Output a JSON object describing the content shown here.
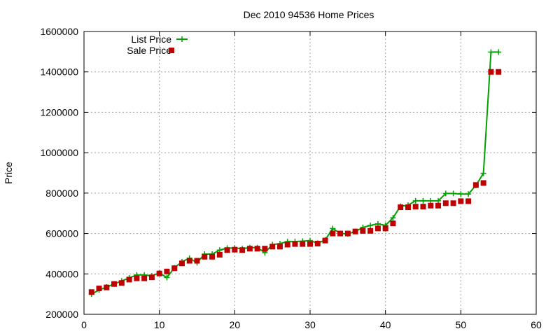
{
  "chart_data": {
    "type": "line",
    "title": "Dec 2010 94536 Home Prices",
    "xlabel": "",
    "ylabel": "Price",
    "xlim": [
      0,
      60
    ],
    "ylim": [
      200000,
      1600000
    ],
    "xticks": [
      0,
      10,
      20,
      30,
      40,
      50,
      60
    ],
    "yticks": [
      200000,
      400000,
      600000,
      800000,
      1000000,
      1200000,
      1400000,
      1600000
    ],
    "xtick_labels": [
      "0",
      "10",
      "20",
      "30",
      "40",
      "50",
      "60"
    ],
    "ytick_labels": [
      "200000",
      "400000",
      "600000",
      "800000",
      "1000000",
      "1200000",
      "1400000",
      "1600000"
    ],
    "grid": true,
    "legend_position": "top-left",
    "series": [
      {
        "name": "List Price",
        "style": "linespoints",
        "color": "#00a000",
        "x": [
          1,
          2,
          3,
          4,
          5,
          6,
          7,
          8,
          9,
          10,
          11,
          12,
          13,
          14,
          15,
          16,
          17,
          18,
          19,
          20,
          21,
          22,
          23,
          24,
          25,
          26,
          27,
          28,
          29,
          30,
          31,
          32,
          33,
          34,
          35,
          36,
          37,
          38,
          39,
          40,
          41,
          42,
          43,
          44,
          45,
          46,
          47,
          48,
          49,
          50,
          51,
          52,
          53,
          54,
          55
        ],
        "y": [
          300000,
          320000,
          335000,
          350000,
          365000,
          380000,
          395000,
          395000,
          390000,
          405000,
          382000,
          430000,
          460000,
          478000,
          455000,
          498000,
          498000,
          518000,
          528000,
          528000,
          525000,
          530000,
          530000,
          505000,
          545000,
          550000,
          560000,
          560000,
          562000,
          565000,
          552000,
          568000,
          625000,
          600000,
          598000,
          610000,
          630000,
          640000,
          648000,
          640000,
          678000,
          735000,
          740000,
          762000,
          762000,
          762000,
          762000,
          798000,
          798000,
          795000,
          795000,
          838000,
          898000,
          1498000,
          1498000
        ]
      },
      {
        "name": "Sale Price",
        "style": "points",
        "color": "#c00000",
        "x": [
          1,
          2,
          3,
          4,
          5,
          6,
          7,
          8,
          9,
          10,
          11,
          12,
          13,
          14,
          15,
          16,
          17,
          18,
          19,
          20,
          21,
          22,
          23,
          24,
          25,
          26,
          27,
          28,
          29,
          30,
          31,
          32,
          33,
          34,
          35,
          36,
          37,
          38,
          39,
          40,
          41,
          42,
          43,
          44,
          45,
          46,
          47,
          48,
          49,
          50,
          51,
          52,
          53,
          54,
          55
        ],
        "y": [
          310000,
          328000,
          333000,
          350000,
          355000,
          372000,
          378000,
          378000,
          383000,
          402000,
          412000,
          428000,
          452000,
          465000,
          465000,
          485000,
          485000,
          495000,
          518000,
          520000,
          518000,
          525000,
          525000,
          525000,
          535000,
          535000,
          545000,
          548000,
          548000,
          548000,
          550000,
          565000,
          600000,
          600000,
          600000,
          610000,
          613000,
          613000,
          625000,
          625000,
          650000,
          730000,
          730000,
          733000,
          733000,
          738000,
          738000,
          750000,
          750000,
          760000,
          760000,
          840000,
          850000,
          1400000,
          1400000
        ]
      }
    ]
  }
}
